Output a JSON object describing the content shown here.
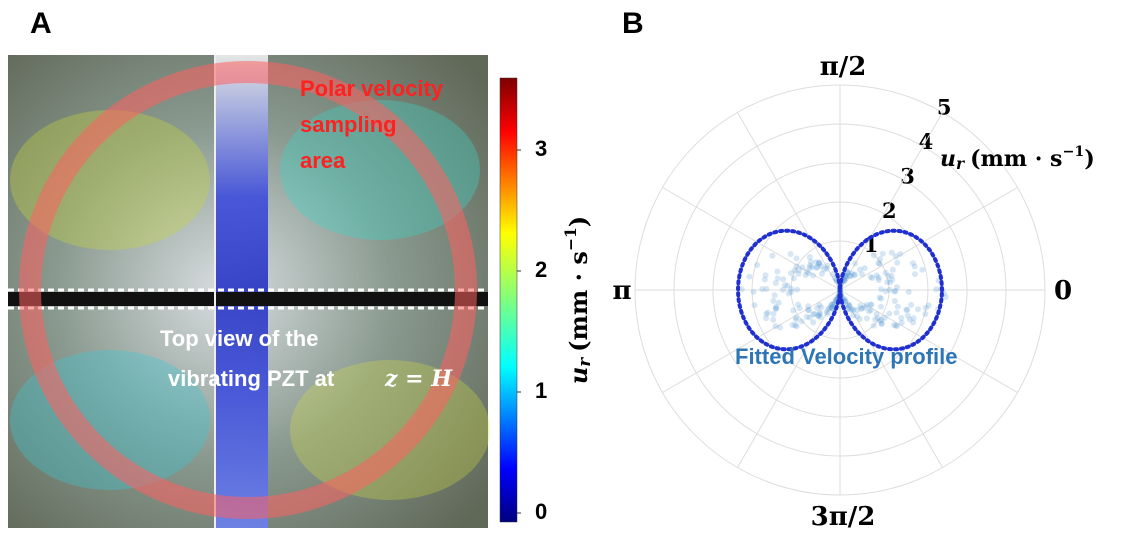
{
  "panels": [
    {
      "label": "A",
      "annotation": [
        "Polar velocity",
        "sampling",
        "area"
      ],
      "caption": [
        "Top view of the",
        "vibrating PZT at",
        "z = H"
      ],
      "colorbar": {
        "ticks": [
          0,
          1,
          2,
          3
        ],
        "label": {
          "symbol": "u",
          "subscript": "r",
          "unit": "(mm · s",
          "exponent": "−1",
          "close": ")"
        }
      }
    },
    {
      "label": "B",
      "angle_labels": [
        "0",
        "π/2",
        "π",
        "3π/2"
      ],
      "radial_ticks": [
        1,
        2,
        3,
        4,
        5
      ],
      "axis_label": {
        "symbol": "u",
        "subscript": "r",
        "unit": "(mm · s",
        "exponent": "−1",
        "close": ")"
      },
      "legend": "Fitted Velocity profile"
    }
  ]
}
